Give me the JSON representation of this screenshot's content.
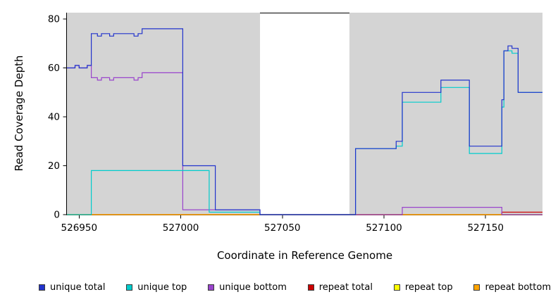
{
  "chart_data": {
    "type": "line",
    "subtype": "step",
    "title": "",
    "xlabel": "Coordinate in Reference Genome",
    "ylabel": "Read Coverage Depth",
    "xlim": [
      526944,
      527178
    ],
    "ylim": [
      0,
      80
    ],
    "xticks": [
      526950,
      527000,
      527050,
      527100,
      527150
    ],
    "yticks": [
      0,
      20,
      40,
      60,
      80
    ],
    "grid": false,
    "panel_bg": "#D4D4D4",
    "highlight_region": {
      "x0": 527039,
      "x1": 527083,
      "color": "#FFFFFF",
      "top_border": "#000000"
    },
    "legend_position": "bottom",
    "draw_order": [
      4,
      3,
      5,
      2,
      1,
      0
    ],
    "series": [
      {
        "name": "unique total",
        "color": "#2233CC",
        "points": [
          [
            526944,
            60
          ],
          [
            526948,
            61
          ],
          [
            526950,
            60
          ],
          [
            526954,
            61
          ],
          [
            526956,
            74
          ],
          [
            526959,
            73
          ],
          [
            526961,
            74
          ],
          [
            526965,
            73
          ],
          [
            526967,
            74
          ],
          [
            526977,
            73
          ],
          [
            526979,
            74
          ],
          [
            526981,
            76
          ],
          [
            527001,
            20
          ],
          [
            527017,
            2
          ],
          [
            527039,
            0
          ],
          [
            527086,
            27
          ],
          [
            527106,
            30
          ],
          [
            527109,
            50
          ],
          [
            527128,
            55
          ],
          [
            527142,
            28
          ],
          [
            527158,
            47
          ],
          [
            527159,
            67
          ],
          [
            527161,
            69
          ],
          [
            527163,
            68
          ],
          [
            527166,
            50
          ]
        ]
      },
      {
        "name": "unique top",
        "color": "#00CCCC",
        "points": [
          [
            526944,
            0
          ],
          [
            526956,
            18
          ],
          [
            527014,
            1
          ],
          [
            527039,
            0
          ],
          [
            527086,
            27
          ],
          [
            527106,
            28
          ],
          [
            527109,
            46
          ],
          [
            527128,
            52
          ],
          [
            527142,
            25
          ],
          [
            527158,
            44
          ],
          [
            527159,
            67
          ],
          [
            527163,
            66
          ],
          [
            527166,
            50
          ]
        ]
      },
      {
        "name": "unique bottom",
        "color": "#9944CC",
        "points": [
          [
            526944,
            60
          ],
          [
            526948,
            61
          ],
          [
            526950,
            60
          ],
          [
            526954,
            61
          ],
          [
            526956,
            56
          ],
          [
            526959,
            55
          ],
          [
            526961,
            56
          ],
          [
            526965,
            55
          ],
          [
            526967,
            56
          ],
          [
            526977,
            55
          ],
          [
            526979,
            56
          ],
          [
            526981,
            58
          ],
          [
            527001,
            2
          ],
          [
            527039,
            0
          ],
          [
            527109,
            3
          ],
          [
            527158,
            0
          ]
        ]
      },
      {
        "name": "repeat total",
        "color": "#CC0000",
        "points": [
          [
            526944,
            0
          ],
          [
            527158,
            1
          ]
        ]
      },
      {
        "name": "repeat top",
        "color": "#FFFF00",
        "points": [
          [
            526944,
            0
          ]
        ]
      },
      {
        "name": "repeat bottom",
        "color": "#FFA500",
        "points": [
          [
            526944,
            0
          ]
        ]
      }
    ]
  }
}
